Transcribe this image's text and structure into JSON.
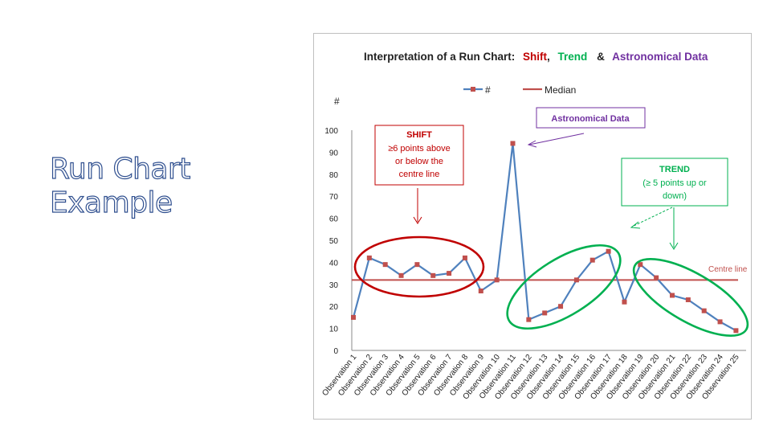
{
  "slide": {
    "title_line1": "Run Chart",
    "title_line2": "Example"
  },
  "chart_data": {
    "type": "line",
    "title_prefix": "Interpretation of a Run Chart:",
    "title_shift": "Shift",
    "title_comma": ",",
    "title_trend": "Trend",
    "title_amp": "&",
    "title_astro": "Astronomical Data",
    "ylabel": "#",
    "ylim": [
      0,
      100
    ],
    "yticks": [
      "0",
      "10",
      "20",
      "30",
      "40",
      "50",
      "60",
      "70",
      "80",
      "90",
      "100"
    ],
    "categories": [
      "Observation 1",
      "Observation 2",
      "Observation 3",
      "Observation 4",
      "Observation 5",
      "Observation 6",
      "Observation 7",
      "Observation 8",
      "Observation 9",
      "Observation 10",
      "Observation 11",
      "Observation 12",
      "Observation 13",
      "Observation 14",
      "Observation 15",
      "Observation 16",
      "Observation 17",
      "Observation 18",
      "Observation 19",
      "Observation 20",
      "Observation 21",
      "Observation 22",
      "Observation 23",
      "Observation 24",
      "Observation 25"
    ],
    "series": [
      {
        "name": "#",
        "values": [
          15,
          42,
          39,
          34,
          39,
          34,
          35,
          42,
          27,
          32,
          94,
          14,
          17,
          20,
          32,
          41,
          45,
          22,
          39,
          33,
          25,
          23,
          18,
          13,
          9
        ],
        "color": "#4f81bd",
        "marker_color": "#c0504d"
      }
    ],
    "median": {
      "name": "Median",
      "value": 32,
      "color": "#c0504d"
    },
    "legend": {
      "position": "top"
    },
    "grid": false,
    "annotations": {
      "shift": {
        "line1": "SHIFT",
        "line2": "≥6 points above",
        "line3": "or below the",
        "line4": "centre line"
      },
      "astro": {
        "text": "Astronomical Data"
      },
      "trend": {
        "line1": "TREND",
        "line2": "(≥ 5 points up or",
        "line3": "down)"
      },
      "centre": {
        "text": "Centre line"
      }
    },
    "colors": {
      "shift": "#c00000",
      "trend": "#00b050",
      "astro": "#7030a0",
      "series": "#4f81bd",
      "median": "#c0504d"
    }
  }
}
